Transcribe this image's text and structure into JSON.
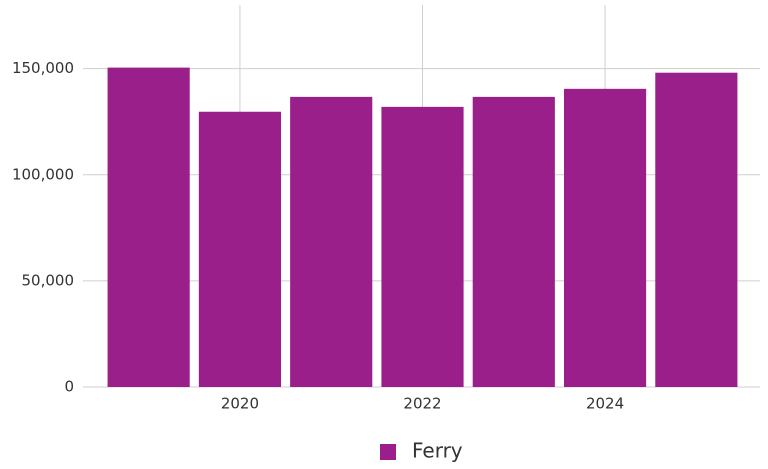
{
  "chart_data": {
    "type": "bar",
    "categories": [
      null,
      "2020",
      null,
      "2022",
      null,
      "2024",
      null
    ],
    "series": [
      {
        "name": "Ferry",
        "color": "#9a1f8a",
        "values": [
          150500,
          129700,
          136700,
          132000,
          136700,
          140500,
          148100
        ]
      }
    ],
    "ylim": [
      0,
      180000
    ],
    "yticks": [
      0,
      {
        "value": 50000,
        "label": "50,000"
      },
      {
        "value": 100000,
        "label": "100,000"
      },
      {
        "value": 150000,
        "label": "150,000"
      }
    ],
    "grid": true,
    "legend": "bottom"
  }
}
